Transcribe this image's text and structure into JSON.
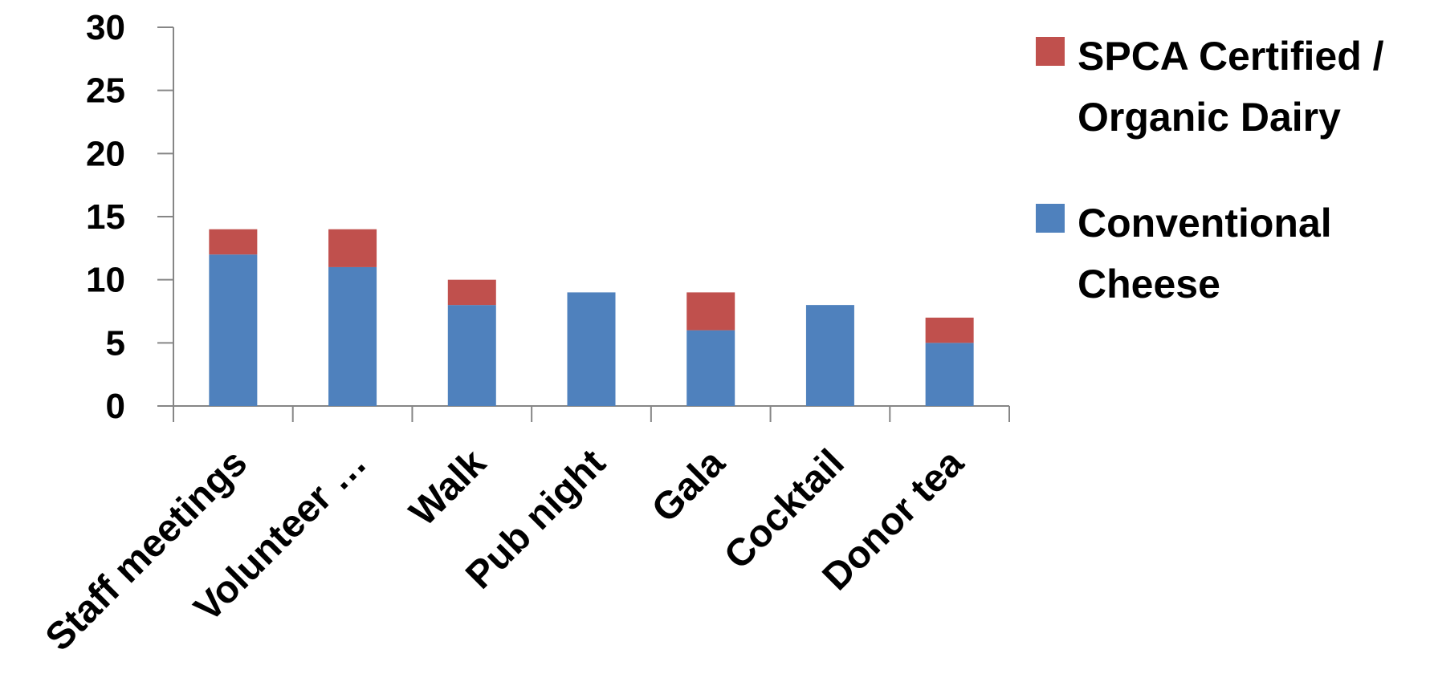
{
  "chart_data": {
    "type": "bar",
    "stacked": true,
    "categories": [
      "Staff meetings",
      "Volunteer …",
      "Walk",
      "Pub night",
      "Gala",
      "Cocktail",
      "Donor tea"
    ],
    "series": [
      {
        "name": "Conventional Cheese",
        "color": "#4f81bd",
        "values": [
          12,
          11,
          8,
          9,
          6,
          8,
          5
        ]
      },
      {
        "name": "SPCA Certified / Organic Dairy",
        "color": "#c0504d",
        "values": [
          2,
          3,
          2,
          0,
          3,
          0,
          2
        ]
      }
    ],
    "ylim": [
      0,
      30
    ],
    "yticks": [
      0,
      5,
      10,
      15,
      20,
      25,
      30
    ],
    "grid": false,
    "legend_position": "right",
    "legend_order": [
      "SPCA Certified / Organic Dairy",
      "Conventional Cheese"
    ]
  }
}
